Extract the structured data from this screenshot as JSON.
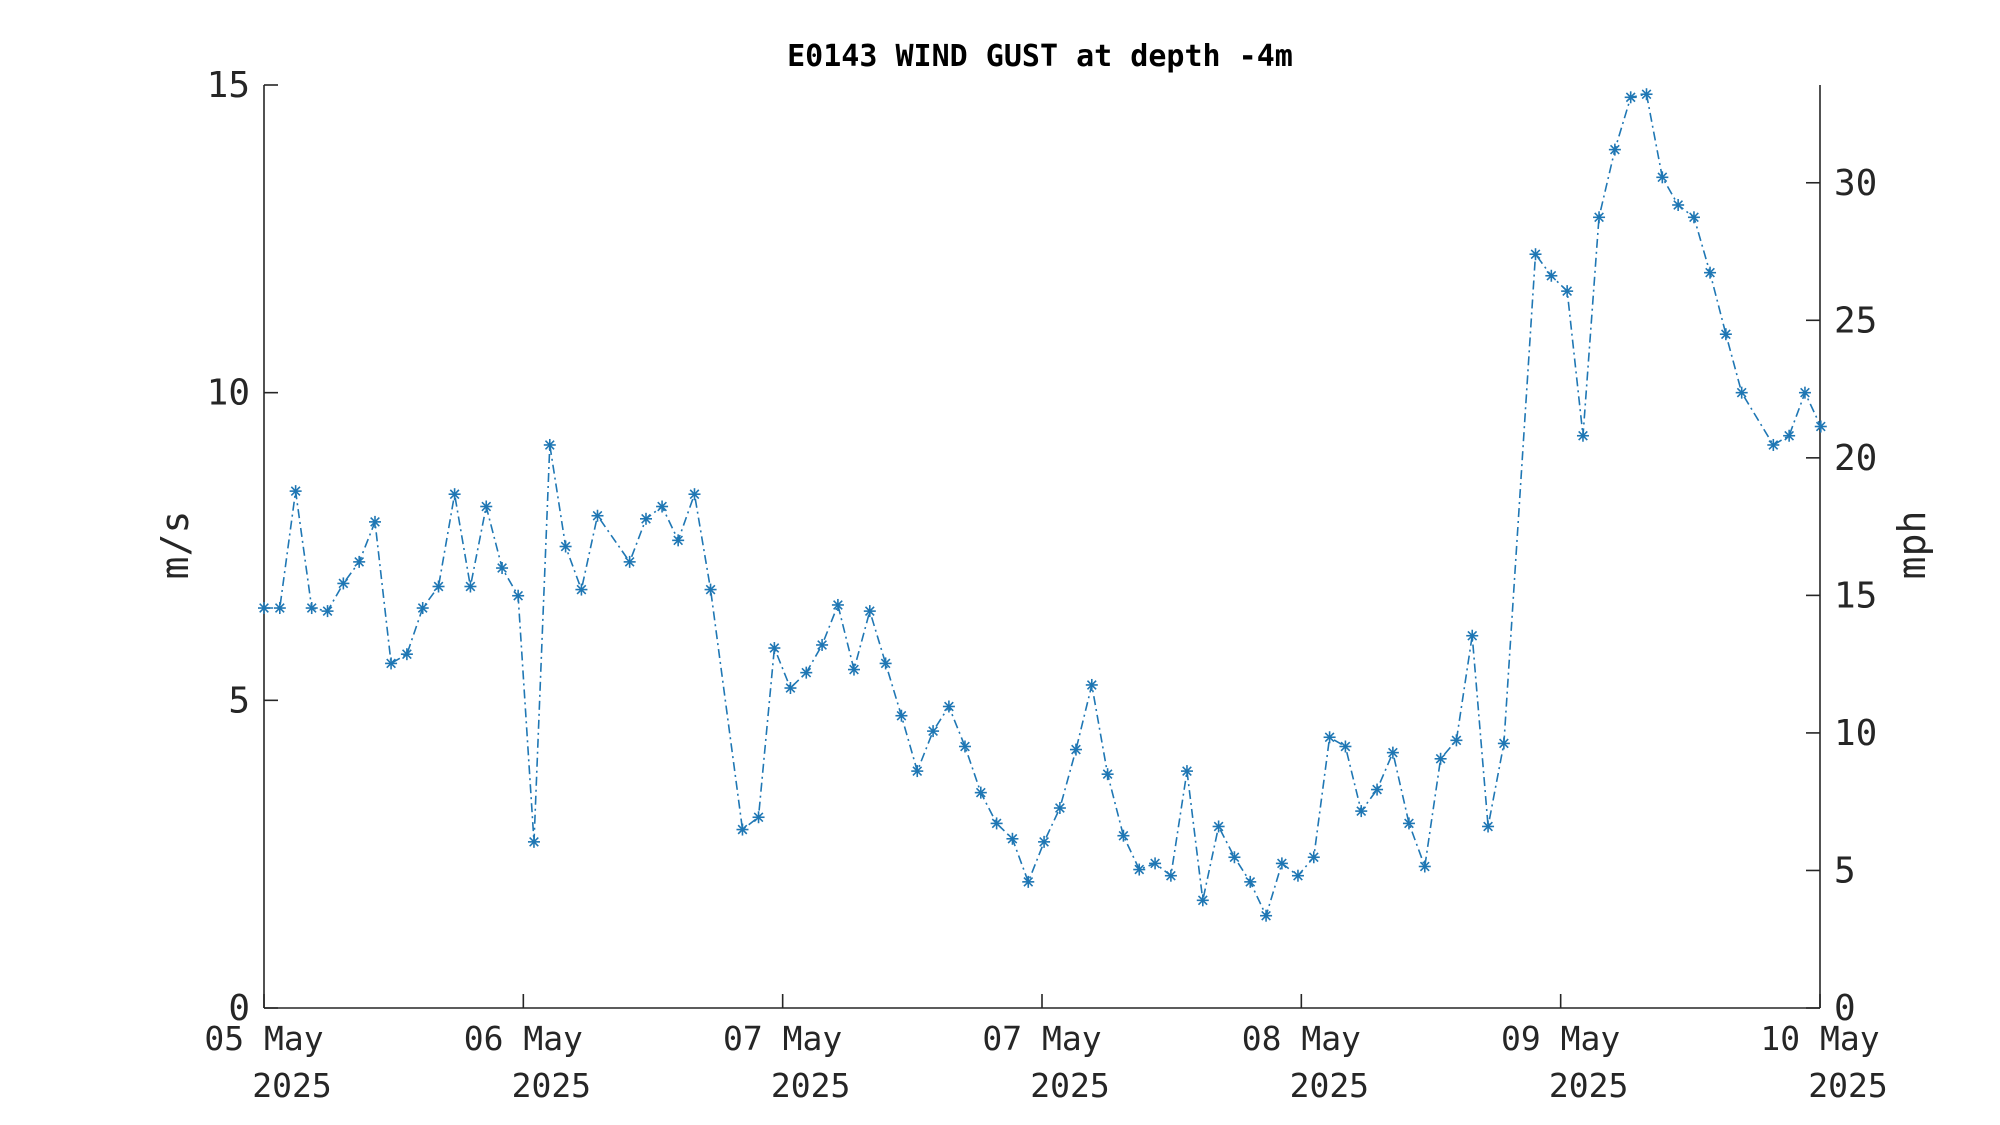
{
  "chart_data": {
    "type": "line",
    "title": "E0143 WIND GUST at depth -4m",
    "ylabel": "m/s",
    "ylabel_right": "mph",
    "ylim": [
      0,
      15
    ],
    "yticks": [
      "0",
      "5",
      "10",
      "15"
    ],
    "yticks_right": [
      "0",
      "5",
      "10",
      "15",
      "20",
      "25",
      "30"
    ],
    "yticks_right_values": [
      0,
      5,
      10,
      15,
      20,
      25,
      30
    ],
    "mph_per_ms": 2.23694,
    "xlim": [
      0,
      6
    ],
    "xticks": [
      {
        "line1": "05 May",
        "line2": "2025"
      },
      {
        "line1": "06 May",
        "line2": "2025"
      },
      {
        "line1": "07 May",
        "line2": "2025"
      },
      {
        "line1": "07 May",
        "line2": "2025"
      },
      {
        "line1": "08 May",
        "line2": "2025"
      },
      {
        "line1": "09 May",
        "line2": "2025"
      },
      {
        "line1": "10 May",
        "line2": "2025"
      }
    ],
    "grid": false,
    "color": "#1f77b4",
    "series": [
      {
        "x": [
          0.0,
          0.061,
          0.122,
          0.184,
          0.245,
          0.306,
          0.367,
          0.428,
          0.49,
          0.551,
          0.612,
          0.673,
          0.735,
          0.796,
          0.857,
          0.918,
          0.98,
          1.041,
          1.102,
          1.163,
          1.224,
          1.286,
          1.41,
          1.473,
          1.535,
          1.597,
          1.66,
          1.722,
          1.845,
          1.907,
          1.968,
          2.03,
          2.091,
          2.152,
          2.213,
          2.275,
          2.336,
          2.397,
          2.458,
          2.519,
          2.58,
          2.641,
          2.703,
          2.764,
          2.825,
          2.886,
          2.947,
          3.008,
          3.069,
          3.131,
          3.192,
          3.253,
          3.314,
          3.375,
          3.436,
          3.497,
          3.559,
          3.62,
          3.681,
          3.742,
          3.803,
          3.864,
          3.925,
          3.987,
          4.048,
          4.109,
          4.17,
          4.231,
          4.292,
          4.353,
          4.415,
          4.476,
          4.537,
          4.598,
          4.659,
          4.72,
          4.781,
          4.903,
          4.964,
          5.025,
          5.086,
          5.148,
          5.209,
          5.27,
          5.331,
          5.392,
          5.453,
          5.514,
          5.576,
          5.637,
          5.698,
          5.82,
          5.881,
          5.942,
          6.003
        ],
        "y": [
          6.5,
          6.5,
          8.4,
          6.5,
          6.45,
          6.9,
          7.25,
          7.9,
          5.6,
          5.75,
          6.5,
          6.85,
          8.35,
          6.85,
          8.15,
          7.15,
          6.7,
          2.7,
          9.15,
          7.5,
          6.8,
          8.0,
          7.25,
          7.95,
          8.15,
          7.6,
          8.35,
          6.8,
          2.9,
          3.1,
          5.85,
          5.2,
          5.45,
          5.9,
          6.55,
          5.5,
          6.45,
          5.6,
          4.75,
          3.85,
          4.5,
          4.9,
          4.25,
          3.5,
          3.0,
          2.75,
          2.05,
          2.7,
          3.25,
          4.2,
          5.25,
          3.8,
          2.8,
          2.25,
          2.35,
          2.15,
          3.85,
          1.75,
          2.95,
          2.45,
          2.05,
          1.5,
          2.35,
          2.15,
          2.45,
          4.4,
          4.25,
          3.2,
          3.55,
          4.15,
          3.0,
          2.3,
          4.05,
          4.35,
          6.05,
          2.95,
          4.3,
          12.25,
          11.9,
          11.65,
          9.3,
          12.85,
          13.95,
          14.8,
          14.85,
          13.5,
          13.05,
          12.85,
          11.95,
          10.95,
          10.0,
          9.15,
          9.3,
          10.0,
          9.45
        ]
      }
    ]
  }
}
